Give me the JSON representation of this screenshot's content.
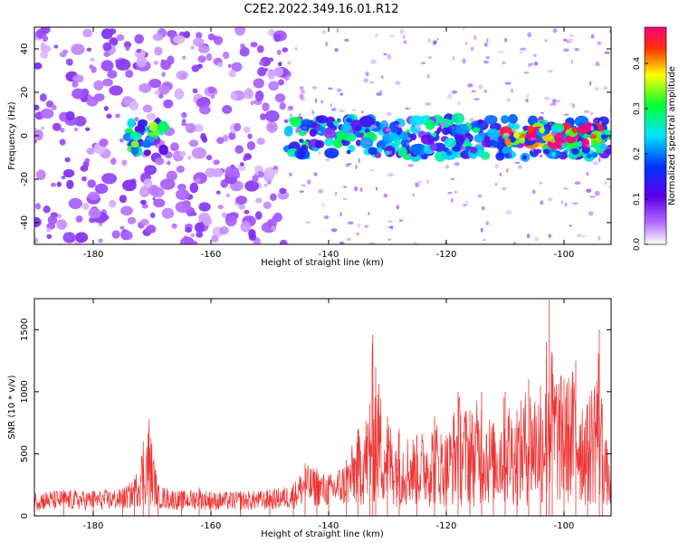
{
  "figure": {
    "title": "C2E2.2022.349.16.01.R12"
  },
  "chart_data": [
    {
      "type": "heatmap",
      "xlabel": "Height of straight line (km)",
      "ylabel": "Frequency (Hz)",
      "xlim": [
        -190,
        -92
      ],
      "ylim": [
        -50,
        50
      ],
      "x_ticks": [
        -180,
        -160,
        -140,
        -120,
        -100
      ],
      "y_ticks": [
        -40,
        -20,
        0,
        20,
        40
      ],
      "colorbar": {
        "label": "Normalized spectral amplitude",
        "range": [
          0.0,
          0.48
        ],
        "ticks": [
          0.0,
          0.1,
          0.2,
          0.3,
          0.4
        ],
        "colors": [
          "#ffffff",
          "#b36bff",
          "#5b00e8",
          "#0033ff",
          "#00e5ff",
          "#00ff33",
          "#ffff00",
          "#ff3300",
          "#ff007f"
        ]
      },
      "features": [
        {
          "x_range": [
            -190,
            -147
          ],
          "freq_range": [
            -50,
            50
          ],
          "amplitude": 0.07
        },
        {
          "x_range": [
            -174,
            -168
          ],
          "freq_range": [
            -8,
            8
          ],
          "amplitude": 0.3
        },
        {
          "x_range": [
            -147,
            -92
          ],
          "freq_range": [
            -10,
            8
          ],
          "amplitude": 0.25
        },
        {
          "x_range": [
            -110,
            -94
          ],
          "freq_range": [
            -4,
            4
          ],
          "amplitude": 0.44
        }
      ]
    },
    {
      "type": "line",
      "xlabel": "Height of straight line (km)",
      "ylabel": "SNR (10 * v/v)",
      "xlim": [
        -190,
        -92
      ],
      "ylim": [
        0,
        1750
      ],
      "x_ticks": [
        -180,
        -160,
        -140,
        -120,
        -100
      ],
      "y_ticks": [
        0,
        500,
        1000,
        1500
      ],
      "series": [
        {
          "color": "#ee3333",
          "x": [
            -190,
            -185,
            -180,
            -175,
            -173,
            -171.5,
            -170.5,
            -169,
            -165,
            -162,
            -160,
            -155,
            -150,
            -146,
            -144,
            -142,
            -140,
            -137,
            -135,
            -133,
            -132.5,
            -132,
            -130,
            -128,
            -125,
            -122,
            -120,
            -118,
            -116,
            -114,
            -112,
            -110,
            -108,
            -106,
            -104,
            -103,
            -102.5,
            -102,
            -100,
            -98,
            -96,
            -94,
            -93.5,
            -92
          ],
          "y": [
            200,
            210,
            205,
            220,
            300,
            600,
            780,
            250,
            200,
            230,
            195,
            200,
            210,
            260,
            420,
            380,
            330,
            450,
            700,
            900,
            1460,
            1200,
            800,
            700,
            650,
            800,
            650,
            1000,
            850,
            1000,
            750,
            1000,
            850,
            1100,
            1050,
            1400,
            1740,
            1300,
            1100,
            1250,
            900,
            1500,
            900,
            300
          ]
        }
      ]
    }
  ]
}
